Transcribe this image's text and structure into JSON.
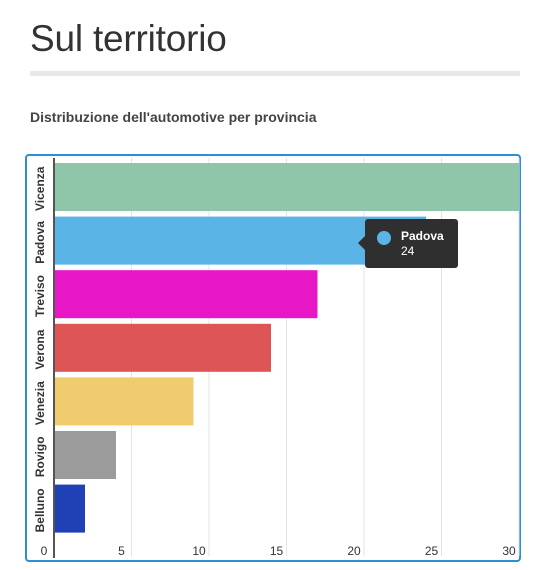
{
  "page": {
    "title": "Sul territorio",
    "subtitle": "Distribuzione dell'automotive per provincia"
  },
  "colors": {
    "frame_border": "#2b8fd1",
    "tooltip_bg": "#2f2f2f"
  },
  "tooltip": {
    "name": "Padova",
    "value": "24",
    "color": "#5ab4e6"
  },
  "chart_data": {
    "type": "bar",
    "orientation": "horizontal",
    "categories": [
      "Vicenza",
      "Padova",
      "Treviso",
      "Verona",
      "Venezia",
      "Rovigo",
      "Belluno"
    ],
    "values": [
      30,
      24,
      17,
      14,
      9,
      4,
      2
    ],
    "colors": [
      "#8fc5a8",
      "#5ab4e6",
      "#e817c5",
      "#de5555",
      "#f0cc6e",
      "#9b9b9b",
      "#2040b6"
    ],
    "xticks": [
      0,
      5,
      10,
      15,
      20,
      25,
      30
    ],
    "xlim": [
      0,
      30
    ],
    "grid": true
  }
}
